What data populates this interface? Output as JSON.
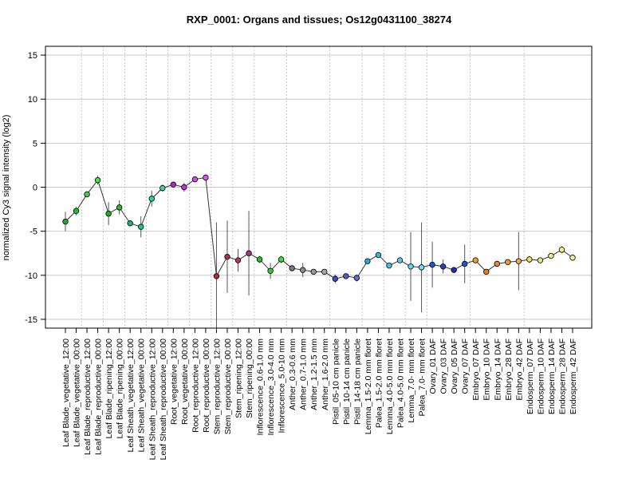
{
  "chart_data": {
    "type": "line",
    "title": "RXP_0001: Organs and tissues; Os12g0431100_38274",
    "xlabel": "",
    "ylabel": "normalized Cy3 signal intensity (log2)",
    "ylim": [
      -16,
      16
    ],
    "yticks": [
      -15,
      -10,
      -5,
      0,
      5,
      10,
      15
    ],
    "grid": true,
    "legend": "none",
    "categories": [
      "Leaf Blade_vegetative_12:00",
      "Leaf Blade_vegetative_00:00",
      "Leaf Blade_reproductive_12:00",
      "Leaf Blade_reproductive_00:00",
      "Leaf Blade_ripening_12:00",
      "Leaf Blade_ripening_00:00",
      "Leaf Sheath_vegetative_12:00",
      "Leaf Sheath_vegetative_00:00",
      "Leaf Sheath_reproductive_12:00",
      "Leaf Sheath_reproductive_00:00",
      "Root_vegetative_12:00",
      "Root_vegetative_00:00",
      "Root_reproductive_12:00",
      "Root_reproductive_00:00",
      "Stem_reproductive_12:00",
      "Stem_reproductive_00:00",
      "Stem_ripening_12:00",
      "Stem_ripening_00:00",
      "Inflorescence_0.6-1.0 mm",
      "Inflorescence_3.0-4.0 mm",
      "Inflorescence_5.0-10 mm",
      "Anther_0.3-0.6 mm",
      "Anther_0.7-1.0 mm",
      "Anther_1.2-1.5 mm",
      "Anther_1.6-2.0 mm",
      "Pistil_05-10 cm panicle",
      "Pistil_10-14 cm panicle",
      "Pistil_14-18 cm panicle",
      "Lemma_1.5-2.0 mm floret",
      "Palea_1.5-2.0 mm floret",
      "Lemma_4.0-5.0 mm floret",
      "Palea_4.0-5.0 mm floret",
      "Lemma_7.0- mm floret",
      "Palea_7.0- mm floret",
      "Ovary_01 DAF",
      "Ovary_03 DAF",
      "Ovary_05 DAF",
      "Ovary_07 DAF",
      "Embryo_07 DAF",
      "Embryo_10 DAF",
      "Embryo_14 DAF",
      "Embryo_28 DAF",
      "Embryo_42 DAF",
      "Endosperm_07 DAF",
      "Endosperm_10 DAF",
      "Endosperm_14 DAF",
      "Endosperm_28 DAF",
      "Endosperm_42 DAF"
    ],
    "group_separators_after": [
      1,
      3,
      5,
      7,
      9,
      11,
      13,
      15,
      17,
      20,
      24,
      27,
      29,
      31,
      33,
      37,
      42
    ],
    "series": [
      {
        "values": [
          -3.9,
          -2.7,
          -0.8,
          0.8,
          -3.0,
          -2.3,
          -4.1,
          -4.5,
          -1.3,
          -0.1,
          0.3,
          0.0,
          0.9,
          1.1,
          -10.1,
          -7.9,
          -8.3,
          -7.5,
          -8.2,
          -9.5,
          -8.2,
          -9.2,
          -9.4,
          -9.6,
          -9.6,
          -10.4,
          -10.1,
          -10.3,
          -8.4,
          -7.7,
          -8.9,
          -8.3,
          -9.0,
          -9.1,
          -8.8,
          -9.0,
          -9.4,
          -8.7,
          -8.3,
          -9.6,
          -8.7,
          -8.5,
          -8.4,
          -8.2,
          -8.3,
          -7.8,
          -7.1,
          -8.0
        ],
        "errors": [
          1.1,
          0.5,
          0.3,
          0.5,
          1.3,
          0.8,
          0.3,
          1.2,
          0.9,
          0.4,
          0.2,
          0.5,
          0.3,
          0.2,
          6.1,
          4.1,
          1.3,
          4.8,
          0.4,
          0.9,
          0.4,
          0.3,
          0.8,
          0.2,
          0.2,
          0.5,
          0.3,
          0.4,
          0.3,
          0.3,
          0.3,
          0.3,
          3.9,
          5.1,
          2.6,
          0.8,
          0.3,
          2.2,
          0.2,
          0.2,
          0.2,
          0.3,
          3.3,
          0.4,
          0.2,
          0.3,
          0.4,
          0.2
        ],
        "colors": [
          "#1db31d",
          "#22c422",
          "#34d534",
          "#44e244",
          "#1db31d",
          "#22c422",
          "#14b87a",
          "#19c98a",
          "#24d49a",
          "#30dfa6",
          "#b820d0",
          "#c535dd",
          "#d048e4",
          "#d85ae9",
          "#d01c28",
          "#b53050",
          "#b03a60",
          "#a03c70",
          "#22c422",
          "#2cd22c",
          "#3ade3a",
          "#7a7a7a",
          "#8c8c8c",
          "#9a9a9a",
          "#a8a8a8",
          "#3a4dc8",
          "#4c5ed2",
          "#5e70dc",
          "#2aa8d8",
          "#38b6e2",
          "#46c0e8",
          "#54cbf0",
          "#62d4f4",
          "#70def8",
          "#1a5ad8",
          "#2a3ec4",
          "#222cb0",
          "#2e50d6",
          "#e8a030",
          "#e87a18",
          "#e88a28",
          "#ec9a38",
          "#f0aa48",
          "#f0e060",
          "#f2e470",
          "#f4e880",
          "#f6ec90",
          "#f8f0a0"
        ]
      }
    ]
  }
}
